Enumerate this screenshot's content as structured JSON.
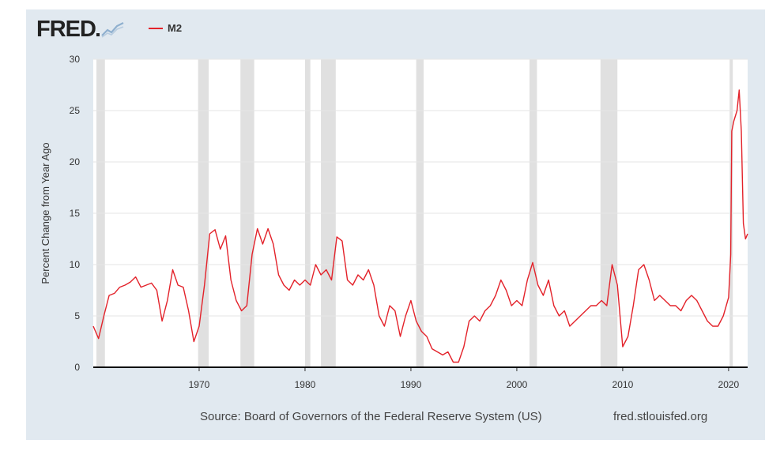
{
  "header": {
    "logo_text": "FRED",
    "logo_icon": "line-chart-icon",
    "legend_label": "M2"
  },
  "footer": {
    "source": "Source: Board of Governors of the Federal Reserve System (US)",
    "site": "fred.stlouisfed.org"
  },
  "colors": {
    "series": "#e3222a",
    "recession": "#e0e0e0",
    "background": "#e1e9f0",
    "plot_background": "#ffffff"
  },
  "chart_data": {
    "type": "line",
    "title": "",
    "xlabel": "",
    "ylabel": "Percent Change from Year Ago",
    "xlim": [
      1960.0,
      2021.8
    ],
    "ylim": [
      0,
      30
    ],
    "x_ticks": [
      1970,
      1980,
      1990,
      2000,
      2010,
      2020
    ],
    "y_ticks": [
      0,
      5,
      10,
      15,
      20,
      25,
      30
    ],
    "grid": "horizontal",
    "legend": "top-left",
    "recessions": [
      [
        1960.3,
        1961.1
      ],
      [
        1969.9,
        1970.9
      ],
      [
        1973.9,
        1975.2
      ],
      [
        1980.0,
        1980.5
      ],
      [
        1981.5,
        1982.9
      ],
      [
        1990.5,
        1991.2
      ],
      [
        2001.2,
        2001.9
      ],
      [
        2007.9,
        2009.5
      ],
      [
        2020.1,
        2020.4
      ]
    ],
    "series": [
      {
        "name": "M2",
        "x": [
          1960.0,
          1960.5,
          1961.0,
          1961.5,
          1962.0,
          1962.5,
          1963.0,
          1963.5,
          1964.0,
          1964.5,
          1965.0,
          1965.5,
          1966.0,
          1966.5,
          1967.0,
          1967.5,
          1968.0,
          1968.5,
          1969.0,
          1969.5,
          1970.0,
          1970.5,
          1971.0,
          1971.5,
          1972.0,
          1972.5,
          1973.0,
          1973.5,
          1974.0,
          1974.5,
          1975.0,
          1975.5,
          1976.0,
          1976.5,
          1977.0,
          1977.5,
          1978.0,
          1978.5,
          1979.0,
          1979.5,
          1980.0,
          1980.5,
          1981.0,
          1981.5,
          1982.0,
          1982.5,
          1983.0,
          1983.5,
          1984.0,
          1984.5,
          1985.0,
          1985.5,
          1986.0,
          1986.5,
          1987.0,
          1987.5,
          1988.0,
          1988.5,
          1989.0,
          1989.5,
          1990.0,
          1990.5,
          1991.0,
          1991.5,
          1992.0,
          1992.5,
          1993.0,
          1993.5,
          1994.0,
          1994.5,
          1995.0,
          1995.5,
          1996.0,
          1996.5,
          1997.0,
          1997.5,
          1998.0,
          1998.5,
          1999.0,
          1999.5,
          2000.0,
          2000.5,
          2001.0,
          2001.5,
          2002.0,
          2002.5,
          2003.0,
          2003.5,
          2004.0,
          2004.5,
          2005.0,
          2005.5,
          2006.0,
          2006.5,
          2007.0,
          2007.5,
          2008.0,
          2008.5,
          2009.0,
          2009.5,
          2010.0,
          2010.5,
          2011.0,
          2011.5,
          2012.0,
          2012.5,
          2013.0,
          2013.5,
          2014.0,
          2014.5,
          2015.0,
          2015.5,
          2016.0,
          2016.5,
          2017.0,
          2017.5,
          2018.0,
          2018.5,
          2019.0,
          2019.5,
          2020.0,
          2020.2,
          2020.3,
          2020.5,
          2020.8,
          2021.0,
          2021.2,
          2021.4,
          2021.6,
          2021.8
        ],
        "values": [
          4.0,
          2.8,
          5.0,
          7.0,
          7.2,
          7.8,
          8.0,
          8.3,
          8.8,
          7.8,
          8.0,
          8.2,
          7.5,
          4.5,
          6.5,
          9.5,
          8.0,
          7.8,
          5.5,
          2.5,
          4.0,
          8.0,
          13.0,
          13.4,
          11.5,
          12.8,
          8.5,
          6.5,
          5.5,
          6.0,
          11.0,
          13.5,
          12.0,
          13.5,
          12.0,
          9.0,
          8.0,
          7.5,
          8.5,
          8.0,
          8.5,
          8.0,
          10.0,
          9.0,
          9.5,
          8.5,
          12.7,
          12.3,
          8.5,
          8.0,
          9.0,
          8.5,
          9.5,
          8.0,
          5.0,
          4.0,
          6.0,
          5.5,
          3.0,
          5.0,
          6.5,
          4.5,
          3.5,
          3.0,
          1.8,
          1.5,
          1.2,
          1.5,
          0.5,
          0.5,
          2.0,
          4.5,
          5.0,
          4.5,
          5.5,
          6.0,
          7.0,
          8.5,
          7.5,
          6.0,
          6.5,
          6.0,
          8.5,
          10.2,
          8.0,
          7.0,
          8.5,
          6.0,
          5.0,
          5.5,
          4.0,
          4.5,
          5.0,
          5.5,
          6.0,
          6.0,
          6.5,
          6.0,
          10.0,
          8.0,
          2.0,
          3.0,
          6.0,
          9.5,
          10.0,
          8.5,
          6.5,
          7.0,
          6.5,
          6.0,
          6.0,
          5.5,
          6.5,
          7.0,
          6.5,
          5.5,
          4.5,
          4.0,
          4.0,
          5.0,
          6.8,
          11.0,
          23.0,
          24.0,
          25.0,
          27.0,
          23.0,
          14.0,
          12.5,
          13.0
        ]
      }
    ]
  }
}
